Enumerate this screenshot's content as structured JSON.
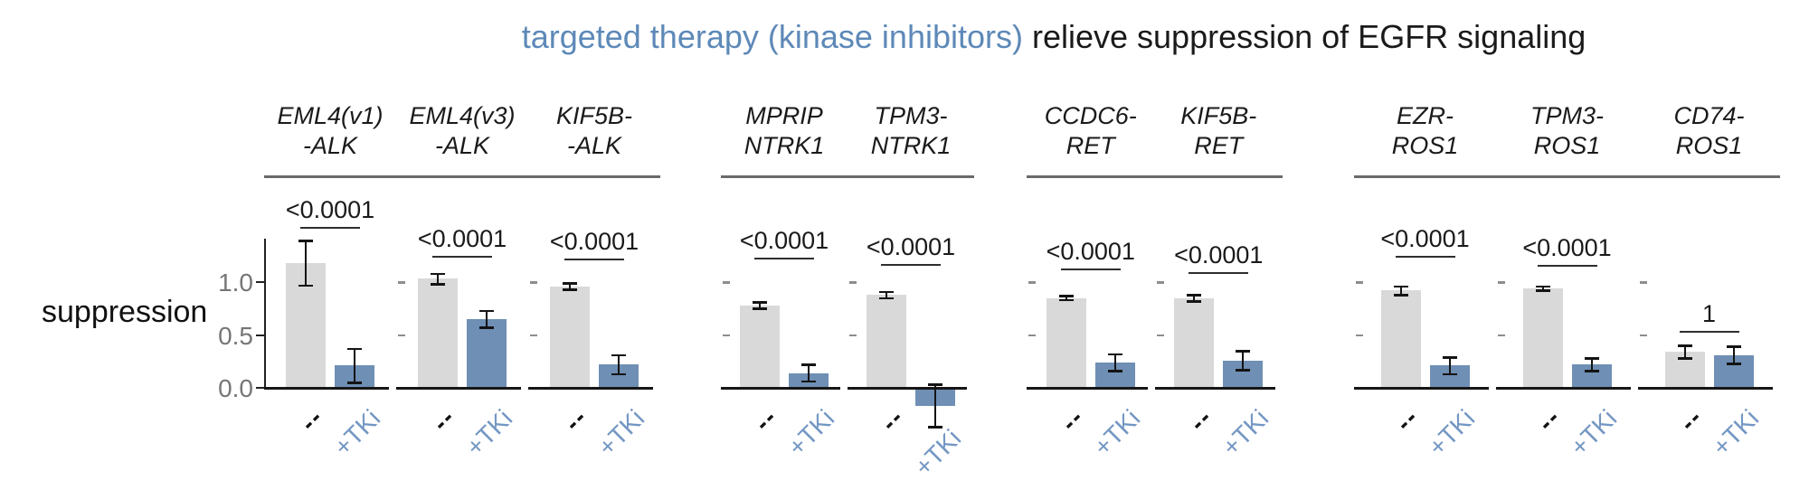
{
  "title": {
    "highlight": "targeted therapy (kinase inhibitors)",
    "rest": " relieve suppression of EGFR signaling"
  },
  "chart_data": {
    "type": "bar",
    "title": "targeted therapy (kinase inhibitors) relieve suppression of EGFR signaling",
    "ylabel": "suppression",
    "xlabel": "",
    "categories": [
      "--",
      "+TKi"
    ],
    "yticks": [
      0.0,
      0.5,
      1.0
    ],
    "ytick_labels": [
      "0.0",
      "0.5",
      "1.0"
    ],
    "ylim": [
      -0.45,
      1.8
    ],
    "grid": false,
    "legend": "none",
    "colors": {
      "control_bar": "#d9d9d9",
      "tki_bar": "#6f8fb4",
      "tki_label": "#7397c3",
      "title_highlight": "#5d89b8",
      "error_bar": "#141414",
      "axis": "#222222",
      "tick_text": "#767676"
    },
    "groups": [
      {
        "gene": "ALK",
        "panels": [
          {
            "label_line1": "EML4(v1)",
            "label_line2": "-ALK",
            "values": [
              1.18,
              0.21
            ],
            "errors": [
              0.21,
              0.16
            ],
            "p": "<0.0001",
            "sig_y": 1.52
          },
          {
            "label_line1": "EML4(v3)",
            "label_line2": "-ALK",
            "values": [
              1.03,
              0.65
            ],
            "errors": [
              0.05,
              0.08
            ],
            "p": "<0.0001",
            "sig_y": 1.25
          },
          {
            "label_line1": "KIF5B-",
            "label_line2": "-ALK",
            "values": [
              0.96,
              0.22
            ],
            "errors": [
              0.03,
              0.09
            ],
            "p": "<0.0001",
            "sig_y": 1.22
          }
        ]
      },
      {
        "gene": "NTRK1",
        "panels": [
          {
            "label_line1": "MPRIP",
            "label_line2": "NTRK1",
            "values": [
              0.78,
              0.14
            ],
            "errors": [
              0.03,
              0.08
            ],
            "p": "<0.0001",
            "sig_y": 1.23
          },
          {
            "label_line1": "TPM3-",
            "label_line2": "NTRK1",
            "values": [
              0.88,
              -0.17
            ],
            "errors": [
              0.03,
              0.2
            ],
            "p": "<0.0001",
            "sig_y": 1.17
          }
        ]
      },
      {
        "gene": "RET",
        "panels": [
          {
            "label_line1": "CCDC6-",
            "label_line2": "RET",
            "values": [
              0.85,
              0.24
            ],
            "errors": [
              0.02,
              0.08
            ],
            "p": "<0.0001",
            "sig_y": 1.13
          },
          {
            "label_line1": "KIF5B-",
            "label_line2": "RET",
            "values": [
              0.85,
              0.26
            ],
            "errors": [
              0.03,
              0.09
            ],
            "p": "<0.0001",
            "sig_y": 1.09
          }
        ]
      },
      {
        "gene": "ROS1",
        "panels": [
          {
            "label_line1": "EZR-",
            "label_line2": "ROS1",
            "values": [
              0.92,
              0.21
            ],
            "errors": [
              0.04,
              0.08
            ],
            "p": "<0.0001",
            "sig_y": 1.25
          },
          {
            "label_line1": "TPM3-",
            "label_line2": "ROS1",
            "values": [
              0.94,
              0.22
            ],
            "errors": [
              0.02,
              0.06
            ],
            "p": "<0.0001",
            "sig_y": 1.16
          },
          {
            "label_line1": "CD74-",
            "label_line2": "ROS1",
            "values": [
              0.34,
              0.31
            ],
            "errors": [
              0.06,
              0.08
            ],
            "p": "1",
            "sig_y": 0.54
          }
        ]
      }
    ]
  }
}
